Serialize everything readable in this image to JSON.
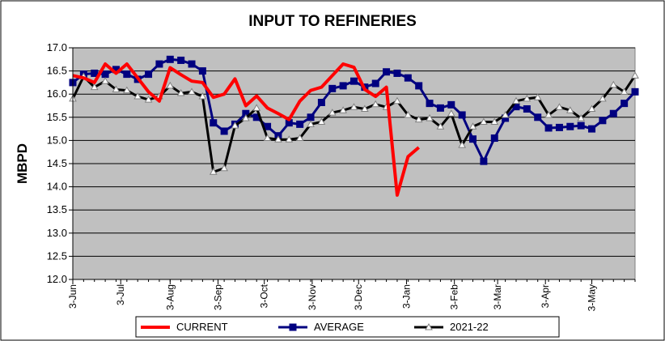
{
  "chart_data": {
    "type": "line",
    "title": "INPUT TO REFINERIES",
    "ylabel": "MBPD",
    "xlabel": "",
    "ylim": [
      12.0,
      17.0
    ],
    "yticks": [
      "12.0",
      "12.5",
      "13.0",
      "13.5",
      "14.0",
      "14.5",
      "15.0",
      "15.5",
      "16.0",
      "16.5",
      "17.0"
    ],
    "xlim": [
      0,
      52
    ],
    "xticks": [
      {
        "x": 0,
        "label": "3-Jun"
      },
      {
        "x": 4.43,
        "label": "3-Jul"
      },
      {
        "x": 9,
        "label": "3-Aug"
      },
      {
        "x": 13.43,
        "label": "3-Sep"
      },
      {
        "x": 17.71,
        "label": "3-Oct"
      },
      {
        "x": 22.14,
        "label": "3-Nov"
      },
      {
        "x": 26.43,
        "label": "3-Dec"
      },
      {
        "x": 30.86,
        "label": "3-Jan"
      },
      {
        "x": 35.29,
        "label": "3-Feb"
      },
      {
        "x": 39.29,
        "label": "3-Mar"
      },
      {
        "x": 43.71,
        "label": "3-Apr"
      },
      {
        "x": 48,
        "label": "3-May"
      }
    ],
    "grid": true,
    "legend_position": "bottom",
    "plot_background": "#c0c0c0",
    "series": [
      {
        "name": "CURRENT",
        "color": "#ff0000",
        "marker": "none",
        "x": [
          0,
          1,
          2,
          3,
          4,
          5,
          6,
          7,
          8,
          9,
          10,
          11,
          12,
          13,
          14,
          15,
          16,
          17,
          18,
          19,
          20,
          21,
          22,
          23,
          24,
          25,
          26,
          27,
          28,
          29,
          30,
          31,
          32,
          33
        ],
        "values": [
          16.4,
          16.35,
          16.25,
          16.65,
          16.45,
          16.65,
          16.35,
          16.05,
          15.85,
          16.57,
          16.42,
          16.28,
          16.25,
          15.93,
          16.0,
          16.33,
          15.75,
          15.96,
          15.7,
          15.58,
          15.45,
          15.85,
          16.08,
          16.15,
          16.4,
          16.65,
          16.58,
          16.1,
          15.95,
          16.15,
          13.82,
          14.65,
          14.85,
          null
        ]
      },
      {
        "name": "AVERAGE",
        "color": "#000080",
        "marker": "square",
        "x": [
          0,
          1,
          2,
          3,
          4,
          5,
          6,
          7,
          8,
          9,
          10,
          11,
          12,
          13,
          14,
          15,
          16,
          17,
          18,
          19,
          20,
          21,
          22,
          23,
          24,
          25,
          26,
          27,
          28,
          29,
          30,
          31,
          32,
          33,
          34,
          35,
          36,
          37,
          38,
          39,
          40,
          41,
          42,
          43,
          44,
          45,
          46,
          47,
          48,
          49,
          50,
          51,
          52
        ],
        "values": [
          16.25,
          16.43,
          16.45,
          16.43,
          16.53,
          16.43,
          16.32,
          16.43,
          16.65,
          16.75,
          16.73,
          16.65,
          16.5,
          15.38,
          15.2,
          15.35,
          15.58,
          15.5,
          15.3,
          15.1,
          15.38,
          15.35,
          15.5,
          15.82,
          16.12,
          16.18,
          16.28,
          16.15,
          16.23,
          16.48,
          16.45,
          16.35,
          16.18,
          15.8,
          15.7,
          15.77,
          15.55,
          15.03,
          14.55,
          15.05,
          15.48,
          15.73,
          15.68,
          15.5,
          15.27,
          15.28,
          15.3,
          15.32,
          15.25,
          15.43,
          15.58,
          15.8,
          16.05
        ]
      },
      {
        "name": "2021-22",
        "color": "#000000",
        "marker": "triangle",
        "x": [
          0,
          1,
          2,
          3,
          4,
          5,
          6,
          7,
          8,
          9,
          10,
          11,
          12,
          13,
          14,
          15,
          16,
          17,
          18,
          19,
          20,
          21,
          22,
          23,
          24,
          25,
          26,
          27,
          28,
          29,
          30,
          31,
          32,
          33,
          34,
          35,
          36,
          37,
          38,
          39,
          40,
          41,
          42,
          43,
          44,
          45,
          46,
          47,
          48,
          49,
          50,
          51,
          52
        ],
        "values": [
          15.9,
          16.38,
          16.15,
          16.28,
          16.1,
          16.08,
          15.95,
          15.88,
          15.95,
          16.18,
          16.02,
          16.05,
          15.95,
          14.32,
          14.4,
          15.32,
          15.48,
          15.7,
          15.05,
          15.02,
          15.02,
          15.05,
          15.35,
          15.4,
          15.6,
          15.65,
          15.72,
          15.68,
          15.78,
          15.72,
          15.85,
          15.55,
          15.45,
          15.48,
          15.3,
          15.58,
          14.9,
          15.3,
          15.4,
          15.4,
          15.55,
          15.85,
          15.9,
          15.93,
          15.55,
          15.72,
          15.65,
          15.48,
          15.68,
          15.9,
          16.2,
          16.05,
          16.4
        ]
      }
    ]
  }
}
